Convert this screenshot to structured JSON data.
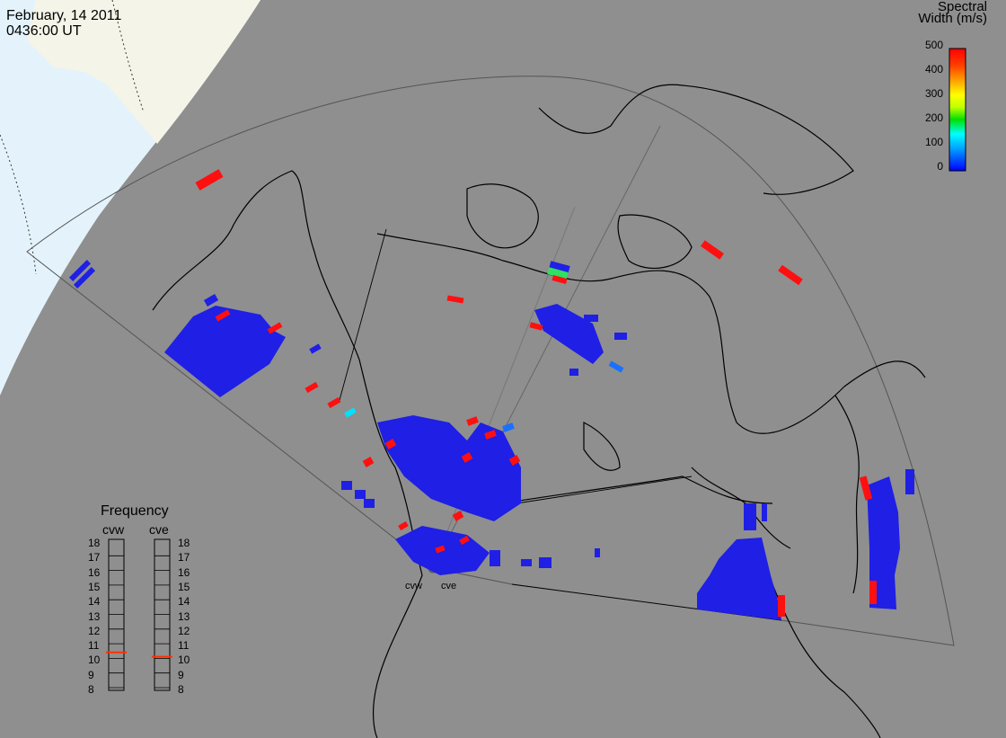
{
  "header": {
    "date": "February, 14 2011",
    "time": "0436:00 UT"
  },
  "colorbar": {
    "title_line1": "Spectral",
    "title_line2": "Width (m/s)",
    "ticks": [
      "500",
      "400",
      "300",
      "200",
      "100",
      "0"
    ],
    "min": 0,
    "max": 500,
    "colors": [
      "#0000ff",
      "#00a0ff",
      "#00ffff",
      "#00e000",
      "#c0ff00",
      "#ffff00",
      "#ffa000",
      "#ff4000",
      "#ff0000"
    ]
  },
  "radars": {
    "west_label": "cvw",
    "east_label": "cve"
  },
  "frequency_panel": {
    "title": "Frequency",
    "left_label": "cvw",
    "right_label": "cve",
    "scale": [
      "18",
      "17",
      "16",
      "15",
      "14",
      "13",
      "12",
      "11",
      "10",
      "9",
      "8"
    ],
    "cvw_value_mhz": 10.9,
    "cve_value_mhz": 10.6,
    "marker_color": "#ff3000"
  },
  "map_colors": {
    "ocean": "#8f8f8f",
    "daylight_land": "#f4f4e8",
    "daylight_ocean": "#e4f3fb",
    "field_of_view_line": "#555555",
    "coast_line": "#000000"
  }
}
